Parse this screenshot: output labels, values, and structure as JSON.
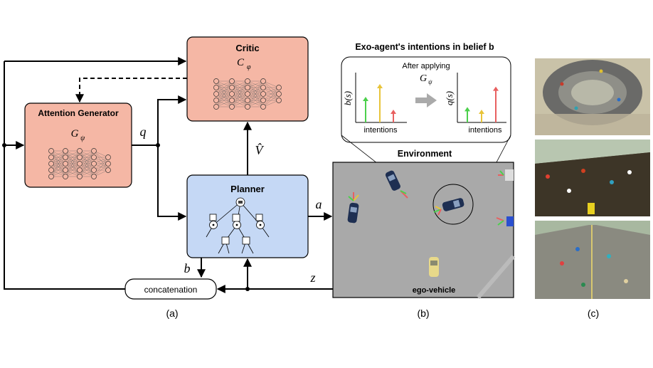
{
  "critic": {
    "title": "Critic",
    "symbol": "C",
    "subscript": "φ"
  },
  "attention_generator": {
    "title": "Attention Generator",
    "symbol": "G",
    "subscript": "ψ"
  },
  "planner": {
    "title": "Planner"
  },
  "concat": {
    "label": "concatenation"
  },
  "vars": {
    "q": "q",
    "a": "a",
    "z": "z",
    "b": "b",
    "vhat": "V̂"
  },
  "belief_panel": {
    "title": "Exo-agent's intentions in belief b",
    "after_text": "After applying",
    "g_symbol": "G",
    "g_sub": "ψ",
    "left_ylabel": "b(s)",
    "right_ylabel": "q(s)",
    "left_xlabel": "intentions",
    "right_xlabel": "intentions",
    "left_bars": [
      0.5,
      0.75,
      0.25
    ],
    "right_bars": [
      0.3,
      0.25,
      0.7
    ],
    "bar_colors": [
      "#4cd04c",
      "#e8c43a",
      "#e86060"
    ]
  },
  "environment": {
    "title": "Environment",
    "ego_label": "ego-vehicle"
  },
  "captions": {
    "a": "(a)",
    "b": "(b)",
    "c": "(c)"
  },
  "colors": {
    "critic_fill": "#f5b7a5",
    "attention_fill": "#f5b7a5",
    "planner_fill": "#c5d8f5",
    "env_fill": "#a9a9a9"
  }
}
